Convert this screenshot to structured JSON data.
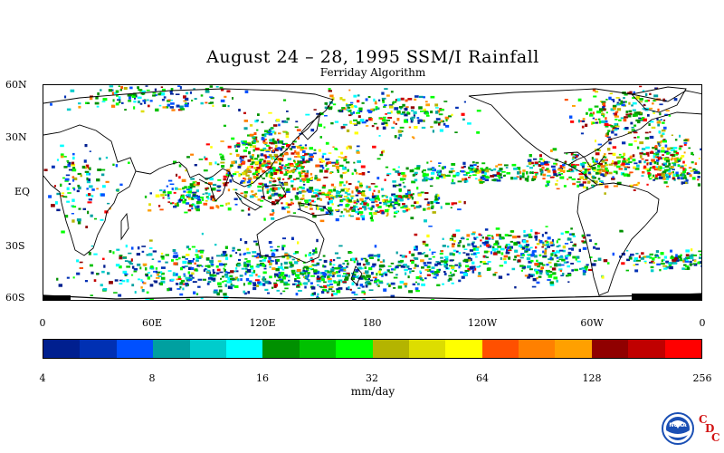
{
  "title": "August 24 – 28, 1995 SSM/I Rainfall",
  "subtitle": "Ferriday Algorithm",
  "map": {
    "lat_ticks": [
      "60N",
      "30N",
      "EQ",
      "30S",
      "60S"
    ],
    "lon_ticks": [
      "0",
      "60E",
      "120E",
      "180",
      "120W",
      "60W",
      "0"
    ],
    "rain_colors": [
      "#001f8f",
      "#0030b3",
      "#0050ff",
      "#00a0a0",
      "#00cccc",
      "#00ffff",
      "#009000",
      "#00c000",
      "#00ff00",
      "#b4b400",
      "#dddd00",
      "#ffff00",
      "#ff5000",
      "#ff8000",
      "#ffa000",
      "#900000",
      "#c00000",
      "#ff0000"
    ],
    "land_color": "#000000",
    "background": "#ffffff"
  },
  "colorbar": {
    "colors": [
      "#001f8f",
      "#0030b3",
      "#0050ff",
      "#00a0a0",
      "#00cccc",
      "#00ffff",
      "#009000",
      "#00c000",
      "#00ff00",
      "#b4b400",
      "#dddd00",
      "#ffff00",
      "#ff5000",
      "#ff8000",
      "#ffa000",
      "#900000",
      "#c00000",
      "#ff0000"
    ],
    "tick_labels": [
      "4",
      "8",
      "16",
      "32",
      "64",
      "128",
      "256"
    ],
    "units": "mm/day"
  },
  "logos": {
    "noaa_text": "NOAA",
    "cdc_letters": [
      "C",
      "D",
      "C"
    ]
  }
}
